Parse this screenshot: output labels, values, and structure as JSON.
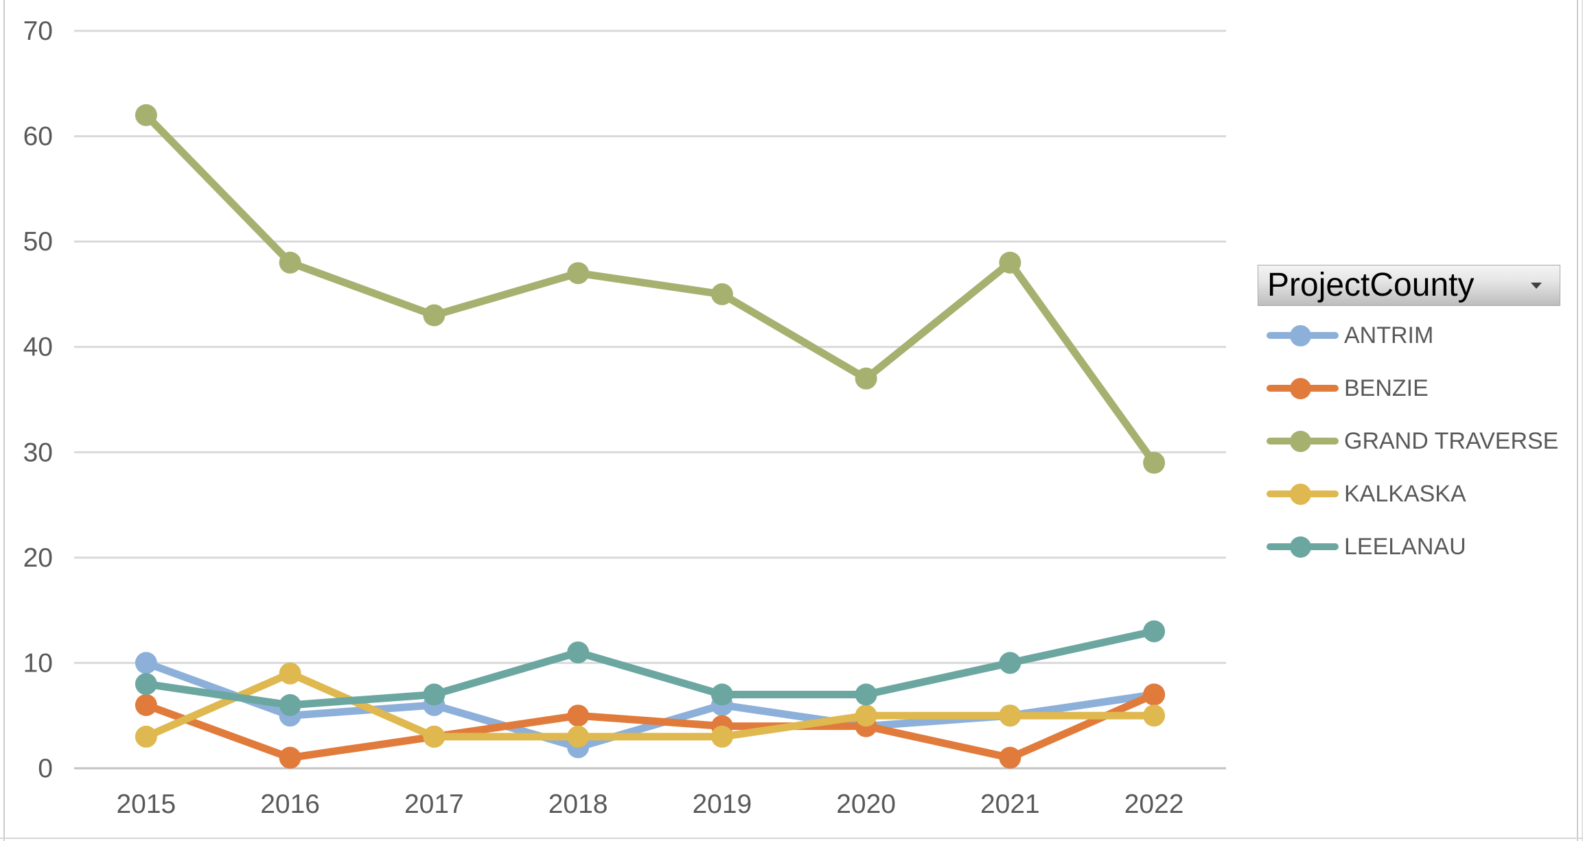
{
  "chart_data": {
    "type": "line",
    "x": [
      "2015",
      "2016",
      "2017",
      "2018",
      "2019",
      "2020",
      "2021",
      "2022"
    ],
    "series": [
      {
        "name": "ANTRIM",
        "color": "#8CB0D9",
        "values": [
          10,
          5,
          6,
          2,
          6,
          4,
          5,
          7
        ]
      },
      {
        "name": "BENZIE",
        "color": "#E07B3C",
        "values": [
          6,
          1,
          3,
          5,
          4,
          4,
          1,
          7
        ]
      },
      {
        "name": "GRAND TRAVERSE",
        "color": "#A6B170",
        "values": [
          62,
          48,
          43,
          47,
          45,
          37,
          48,
          29
        ]
      },
      {
        "name": "KALKASKA",
        "color": "#DFB84F",
        "values": [
          3,
          9,
          3,
          3,
          3,
          5,
          5,
          5
        ]
      },
      {
        "name": "LEELANAU",
        "color": "#6BA7A0",
        "values": [
          8,
          6,
          7,
          11,
          7,
          7,
          10,
          13
        ]
      }
    ],
    "title": "",
    "xlabel": "",
    "ylabel": "",
    "ylim": [
      0,
      70
    ],
    "yticks": [
      0,
      10,
      20,
      30,
      40,
      50,
      60,
      70
    ],
    "grid": true,
    "legend_position": "right"
  },
  "legend": {
    "field_button_label": "ProjectCounty"
  },
  "styles": {
    "gridline_color": "#D9D9D9",
    "axis_line_color": "#C2C2C2",
    "tick_label_color": "#595959"
  }
}
